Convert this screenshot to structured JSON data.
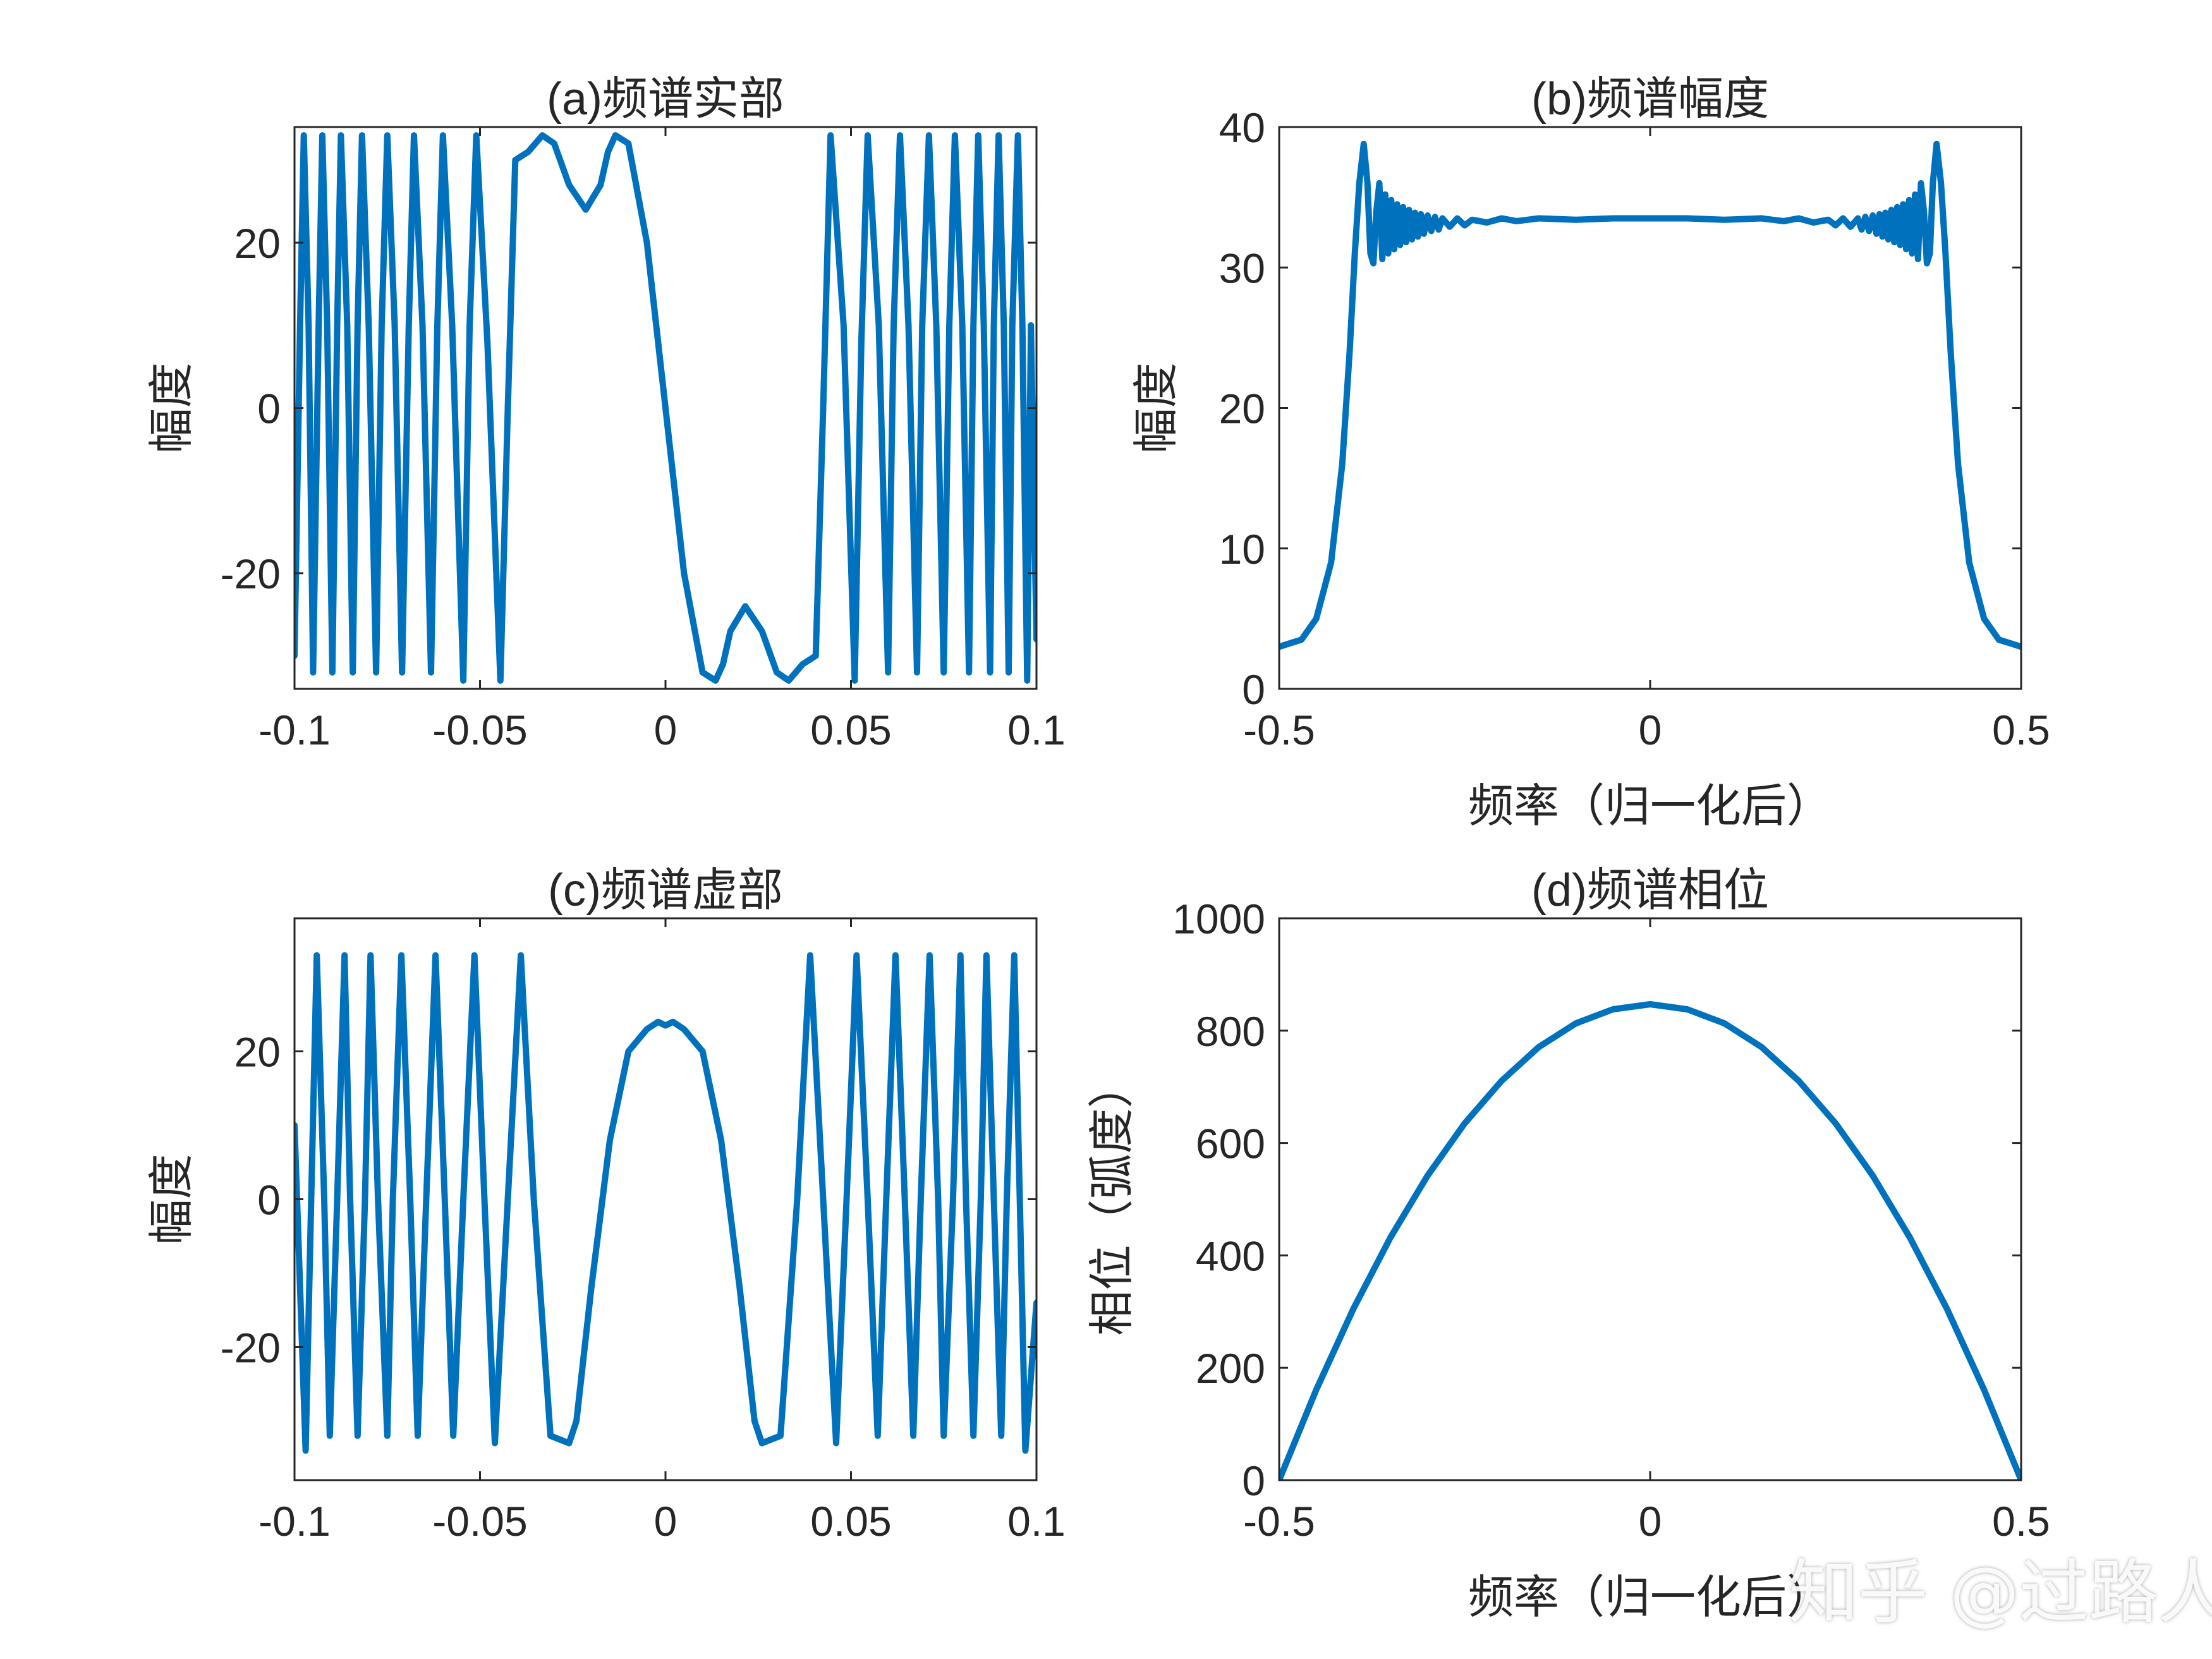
{
  "figure": {
    "watermark": "知乎 @过路人",
    "line_color": "#0072BD",
    "axis_color": "#262626"
  },
  "chart_data": [
    {
      "id": "a",
      "type": "line",
      "title": "(a)频谱实部",
      "xlabel": "",
      "ylabel": "幅度",
      "xlim": [
        -0.1,
        0.1
      ],
      "ylim": [
        -34,
        34
      ],
      "xticks": [
        -0.1,
        -0.05,
        0,
        0.05,
        0.1
      ],
      "xtick_labels": [
        "-0.1",
        "-0.05",
        "0",
        "0.05",
        "0.1"
      ],
      "yticks": [
        -20,
        0,
        20
      ],
      "ytick_labels": [
        "-20",
        "0",
        "20"
      ],
      "grid": false,
      "series": [
        {
          "x": [
            -0.1,
            -0.0985,
            -0.0975,
            -0.0962,
            -0.095,
            -0.0935,
            -0.0925,
            -0.0912,
            -0.0898,
            -0.0885,
            -0.0875,
            -0.0858,
            -0.0843,
            -0.083,
            -0.0818,
            -0.08,
            -0.078,
            -0.0765,
            -0.075,
            -0.073,
            -0.071,
            -0.0692,
            -0.0678,
            -0.0655,
            -0.0632,
            -0.0615,
            -0.06,
            -0.0575,
            -0.0545,
            -0.0528,
            -0.051,
            -0.048,
            -0.0445,
            -0.0425,
            -0.0405,
            -0.037,
            -0.0332,
            -0.03,
            -0.026,
            -0.0215,
            -0.0175,
            -0.0155,
            -0.0135,
            -0.01,
            -0.005,
            0,
            0.005,
            0.01,
            0.0135,
            0.0155,
            0.0175,
            0.0215,
            0.026,
            0.03,
            0.0332,
            0.037,
            0.0405,
            0.0425,
            0.0445,
            0.048,
            0.051,
            0.0528,
            0.0545,
            0.0575,
            0.06,
            0.0615,
            0.0632,
            0.0655,
            0.0678,
            0.0692,
            0.071,
            0.073,
            0.075,
            0.0765,
            0.078,
            0.08,
            0.0818,
            0.083,
            0.0843,
            0.0858,
            0.0875,
            0.0885,
            0.0898,
            0.0912,
            0.0925,
            0.0935,
            0.095,
            0.0962,
            0.0975,
            0.0985,
            0.1
          ],
          "y": [
            -30,
            10,
            33,
            10,
            -32,
            10,
            33,
            10,
            -32,
            10,
            33,
            10,
            -32,
            10,
            33,
            10,
            -32,
            10,
            33,
            10,
            -32,
            10,
            33,
            10,
            -32,
            10,
            33,
            10,
            -33,
            10,
            33,
            8,
            -33,
            0,
            30,
            31,
            33,
            32,
            27,
            24,
            27,
            31,
            33,
            32,
            20,
            0,
            -20,
            -32,
            -33,
            -31,
            -27,
            -24,
            -27,
            -32,
            -33,
            -31,
            -30,
            0,
            33,
            10,
            -33,
            8,
            33,
            10,
            -32,
            10,
            33,
            10,
            -32,
            10,
            33,
            10,
            -32,
            10,
            33,
            10,
            -32,
            10,
            33,
            10,
            -32,
            10,
            33,
            10,
            -32,
            10,
            33,
            10,
            -33,
            10,
            -28
          ]
        }
      ]
    },
    {
      "id": "b",
      "type": "line",
      "title": "(b)频谱幅度",
      "xlabel": "频率（归一化后）",
      "ylabel": "幅度",
      "xlim": [
        -0.5,
        0.5
      ],
      "ylim": [
        0,
        40
      ],
      "xticks": [
        -0.5,
        0,
        0.5
      ],
      "xtick_labels": [
        "-0.5",
        "0",
        "0.5"
      ],
      "yticks": [
        0,
        10,
        20,
        30,
        40
      ],
      "ytick_labels": [
        "0",
        "10",
        "20",
        "30",
        "40"
      ],
      "grid": false,
      "series": [
        {
          "x": [
            -0.5,
            -0.47,
            -0.45,
            -0.43,
            -0.415,
            -0.405,
            -0.398,
            -0.392,
            -0.386,
            -0.381,
            -0.377,
            -0.373,
            -0.369,
            -0.365,
            -0.361,
            -0.357,
            -0.353,
            -0.349,
            -0.345,
            -0.341,
            -0.337,
            -0.333,
            -0.329,
            -0.325,
            -0.321,
            -0.317,
            -0.313,
            -0.309,
            -0.305,
            -0.3,
            -0.295,
            -0.29,
            -0.285,
            -0.28,
            -0.27,
            -0.26,
            -0.25,
            -0.24,
            -0.22,
            -0.2,
            -0.18,
            -0.15,
            -0.1,
            -0.05,
            0,
            0.05,
            0.1,
            0.15,
            0.18,
            0.2,
            0.22,
            0.24,
            0.25,
            0.26,
            0.27,
            0.28,
            0.285,
            0.29,
            0.295,
            0.3,
            0.305,
            0.309,
            0.313,
            0.317,
            0.321,
            0.325,
            0.329,
            0.333,
            0.337,
            0.341,
            0.345,
            0.349,
            0.353,
            0.357,
            0.361,
            0.365,
            0.369,
            0.373,
            0.377,
            0.381,
            0.386,
            0.392,
            0.398,
            0.405,
            0.415,
            0.43,
            0.45,
            0.47,
            0.5
          ],
          "y": [
            3,
            3.5,
            5,
            9,
            16,
            24,
            31,
            36,
            38.8,
            36,
            31,
            30.3,
            34,
            36,
            30.6,
            35.2,
            31,
            34.8,
            31.3,
            34.5,
            31.6,
            34.3,
            31.8,
            34.1,
            32,
            33.9,
            32.2,
            33.8,
            32.4,
            33.7,
            32.6,
            33.6,
            32.7,
            33.5,
            32.9,
            33.5,
            33,
            33.4,
            33.2,
            33.5,
            33.3,
            33.5,
            33.4,
            33.5,
            33.5,
            33.5,
            33.4,
            33.5,
            33.3,
            33.5,
            33.2,
            33.4,
            33,
            33.5,
            32.9,
            33.5,
            32.7,
            33.6,
            32.6,
            33.7,
            32.4,
            33.8,
            32.2,
            33.9,
            32,
            34.1,
            31.8,
            34.3,
            31.6,
            34.5,
            31.3,
            34.8,
            31,
            35.2,
            30.6,
            36,
            34,
            30.3,
            31,
            36,
            38.8,
            36,
            31,
            24,
            16,
            9,
            5,
            3.5,
            3
          ]
        }
      ]
    },
    {
      "id": "c",
      "type": "line",
      "title": "(c)频谱虚部",
      "xlabel": "",
      "ylabel": "幅度",
      "xlim": [
        -0.1,
        0.1
      ],
      "ylim": [
        -38,
        38
      ],
      "xticks": [
        -0.1,
        -0.05,
        0,
        0.05,
        0.1
      ],
      "xtick_labels": [
        "-0.1",
        "-0.05",
        "0",
        "0.05",
        "0.1"
      ],
      "yticks": [
        -20,
        0,
        20
      ],
      "ytick_labels": [
        "-20",
        "0",
        "20"
      ],
      "grid": false,
      "series": [
        {
          "x": [
            -0.1,
            -0.097,
            -0.0955,
            -0.094,
            -0.092,
            -0.0905,
            -0.0885,
            -0.0865,
            -0.085,
            -0.083,
            -0.081,
            -0.0795,
            -0.0775,
            -0.075,
            -0.0735,
            -0.0712,
            -0.0688,
            -0.0668,
            -0.0645,
            -0.062,
            -0.0595,
            -0.0572,
            -0.0545,
            -0.0515,
            -0.0488,
            -0.046,
            -0.0425,
            -0.039,
            -0.0355,
            -0.031,
            -0.026,
            -0.024,
            -0.02,
            -0.015,
            -0.01,
            -0.005,
            -0.002,
            0,
            0.002,
            0.005,
            0.01,
            0.015,
            0.02,
            0.024,
            0.026,
            0.031,
            0.0355,
            0.039,
            0.0425,
            0.046,
            0.0488,
            0.0515,
            0.0545,
            0.0572,
            0.0595,
            0.062,
            0.0645,
            0.0668,
            0.0688,
            0.0712,
            0.0735,
            0.075,
            0.0775,
            0.0795,
            0.081,
            0.083,
            0.085,
            0.0865,
            0.0885,
            0.0905,
            0.092,
            0.094,
            0.0955,
            0.097,
            0.1
          ],
          "y": [
            10,
            -34,
            0,
            33,
            0,
            -32,
            0,
            33,
            0,
            -32,
            0,
            33,
            0,
            -32,
            0,
            33,
            0,
            -32,
            0,
            33,
            0,
            -32,
            0,
            33,
            0,
            -33,
            0,
            33,
            0,
            -32,
            -33,
            -30,
            -12,
            8,
            20,
            23,
            24,
            23.5,
            24,
            23,
            20,
            8,
            -12,
            -30,
            -33,
            -32,
            0,
            33,
            0,
            -33,
            0,
            33,
            0,
            -32,
            0,
            33,
            0,
            -32,
            0,
            33,
            0,
            -32,
            0,
            33,
            0,
            -32,
            0,
            33,
            0,
            -32,
            0,
            33,
            0,
            -34,
            -14
          ]
        }
      ]
    },
    {
      "id": "d",
      "type": "line",
      "title": "(d)频谱相位",
      "xlabel": "频率（归一化后）",
      "ylabel": "相位（弧度）",
      "xlim": [
        -0.5,
        0.5
      ],
      "ylim": [
        0,
        1000
      ],
      "xticks": [
        -0.5,
        0,
        0.5
      ],
      "xtick_labels": [
        "-0.5",
        "0",
        "0.5"
      ],
      "yticks": [
        0,
        200,
        400,
        600,
        800,
        1000
      ],
      "ytick_labels": [
        "0",
        "200",
        "400",
        "600",
        "800",
        "1000"
      ],
      "grid": false,
      "series": [
        {
          "x": [
            -0.5,
            -0.45,
            -0.4,
            -0.35,
            -0.3,
            -0.25,
            -0.2,
            -0.15,
            -0.1,
            -0.05,
            0,
            0.05,
            0.1,
            0.15,
            0.2,
            0.25,
            0.3,
            0.35,
            0.4,
            0.45,
            0.5
          ],
          "y": [
            0,
            161,
            305,
            432,
            542,
            635,
            711,
            771,
            813,
            838,
            847,
            838,
            813,
            771,
            711,
            635,
            542,
            432,
            305,
            161,
            0
          ]
        }
      ]
    }
  ]
}
